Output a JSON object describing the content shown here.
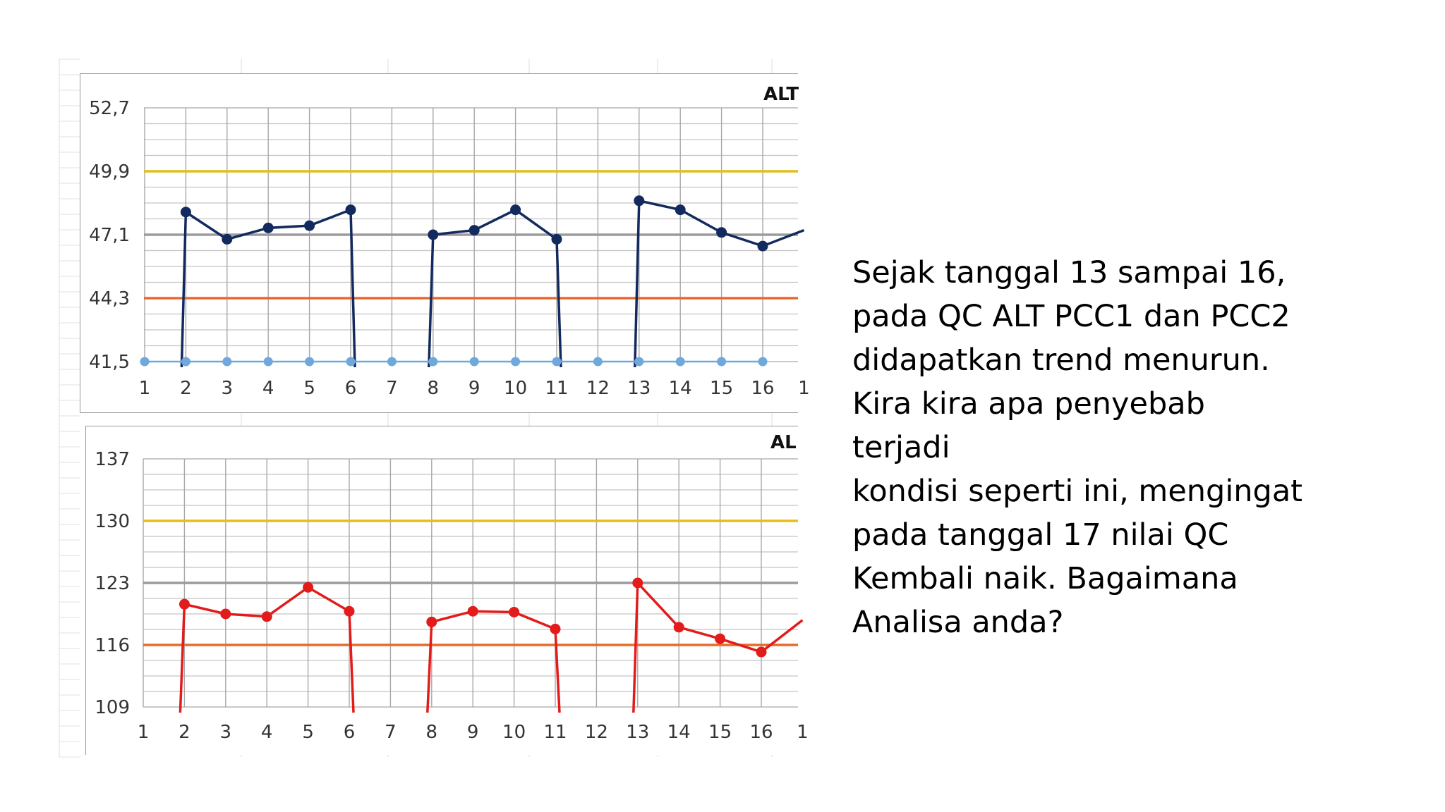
{
  "slide_text": "Sejak tanggal 13 sampai 16,\npada QC ALT PCC1 dan PCC2\ndidapatkan trend menurun.\nKira kira apa penyebab terjadi\nkondisi seperti ini, mengingat\npada tanggal 17 nilai QC\nKembali naik. Bagaimana\nAnalisa anda?",
  "chart_data": [
    {
      "type": "line",
      "title": "ALT",
      "x_ticks": [
        "1",
        "2",
        "3",
        "4",
        "5",
        "6",
        "7",
        "8",
        "9",
        "10",
        "11",
        "12",
        "13",
        "14",
        "15",
        "16",
        "1"
      ],
      "y_ticks": [
        "52,7",
        "49,9",
        "47,1",
        "44,3",
        "41,5"
      ],
      "ylim": [
        41.5,
        52.7
      ],
      "reference_lines": [
        {
          "value": 49.9,
          "color": "#e3bd1a"
        },
        {
          "value": 47.1,
          "color": "#9b9b9b"
        },
        {
          "value": 44.3,
          "color": "#e86a2a"
        }
      ],
      "series": [
        {
          "color": "#132a5e",
          "x": [
            2,
            3,
            4,
            5,
            6,
            8,
            9,
            10,
            11,
            13,
            14,
            15,
            16,
            17
          ],
          "y": [
            48.1,
            46.9,
            47.4,
            47.5,
            48.2,
            47.1,
            47.3,
            48.2,
            46.9,
            48.6,
            48.2,
            47.2,
            46.6,
            47.3
          ]
        },
        {
          "color": "#6fa8dc",
          "x": [
            1,
            2,
            3,
            4,
            5,
            6,
            7,
            8,
            9,
            10,
            11,
            12,
            13,
            14,
            15,
            16
          ],
          "y": [
            41.5,
            41.5,
            41.5,
            41.5,
            41.5,
            41.5,
            41.5,
            41.5,
            41.5,
            41.5,
            41.5,
            41.5,
            41.5,
            41.5,
            41.5,
            41.5
          ]
        }
      ],
      "grid": true
    },
    {
      "type": "line",
      "title": "AL",
      "x_ticks": [
        "1",
        "2",
        "3",
        "4",
        "5",
        "6",
        "7",
        "8",
        "9",
        "10",
        "11",
        "12",
        "13",
        "14",
        "15",
        "16",
        "1"
      ],
      "y_ticks": [
        "137",
        "130",
        "123",
        "116",
        "109"
      ],
      "ylim": [
        109,
        137
      ],
      "reference_lines": [
        {
          "value": 130,
          "color": "#e3bd1a"
        },
        {
          "value": 123,
          "color": "#9b9b9b"
        },
        {
          "value": 116,
          "color": "#e86a2a"
        }
      ],
      "series": [
        {
          "color": "#e21b1b",
          "x": [
            2,
            3,
            4,
            5,
            6,
            8,
            9,
            10,
            11,
            13,
            14,
            15,
            16,
            17
          ],
          "y": [
            120.6,
            119.5,
            119.2,
            122.5,
            119.8,
            118.6,
            119.8,
            119.7,
            117.8,
            123.0,
            118.0,
            116.7,
            115.2,
            118.8
          ]
        }
      ],
      "grid": true
    }
  ]
}
